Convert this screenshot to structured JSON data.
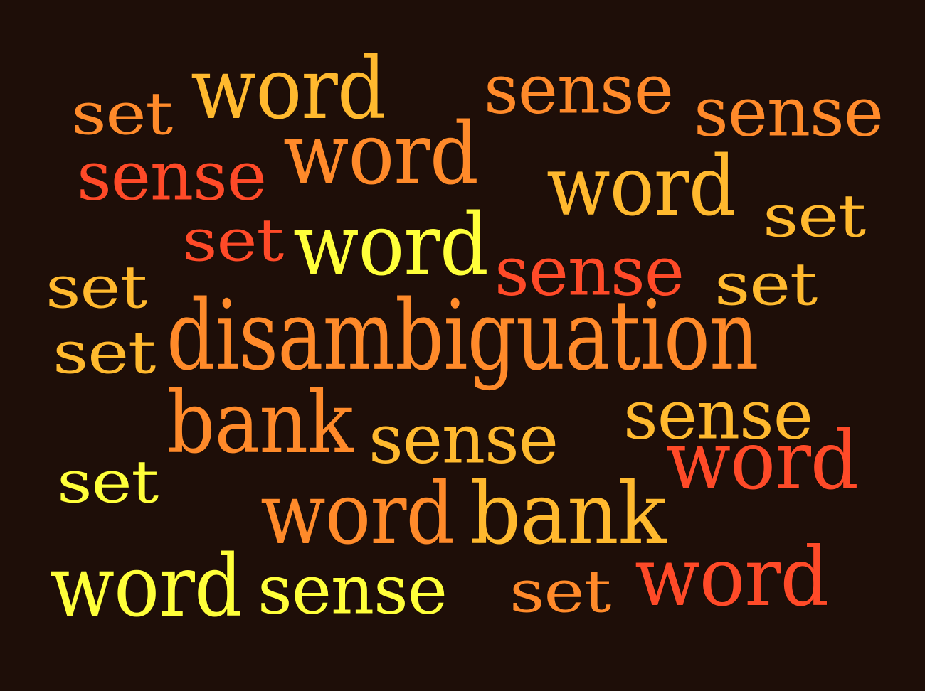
{
  "palette": {
    "background": "#1e0e08",
    "yellow": "#ffff3a",
    "gold": "#ffb92e",
    "orange": "#ff8a2a",
    "red": "#ff4a28"
  },
  "words": [
    {
      "text": "set",
      "color": "#ff8a2a"
    },
    {
      "text": "word",
      "color": "#ffb92e"
    },
    {
      "text": "sense",
      "color": "#ff8a2a"
    },
    {
      "text": "sense",
      "color": "#ff8a2a"
    },
    {
      "text": "sense",
      "color": "#ff4a28"
    },
    {
      "text": "word",
      "color": "#ff8a2a"
    },
    {
      "text": "word",
      "color": "#ffb92e"
    },
    {
      "text": "set",
      "color": "#ffb92e"
    },
    {
      "text": "set",
      "color": "#ff4a28"
    },
    {
      "text": "word",
      "color": "#ffff3a"
    },
    {
      "text": "sense",
      "color": "#ff4a28"
    },
    {
      "text": "set",
      "color": "#ffb92e"
    },
    {
      "text": "set",
      "color": "#ffb92e"
    },
    {
      "text": "set",
      "color": "#ffb92e"
    },
    {
      "text": "disambiguation",
      "color": "#ff8a2a"
    },
    {
      "text": "sense",
      "color": "#ffb92e"
    },
    {
      "text": "bank",
      "color": "#ff8a2a"
    },
    {
      "text": "sense",
      "color": "#ffb92e"
    },
    {
      "text": "set",
      "color": "#ffff3a"
    },
    {
      "text": "word",
      "color": "#ff4a28"
    },
    {
      "text": "word",
      "color": "#ff8a2a"
    },
    {
      "text": "bank",
      "color": "#ffb92e"
    },
    {
      "text": "word",
      "color": "#ffff3a"
    },
    {
      "text": "sense",
      "color": "#ffff3a"
    },
    {
      "text": "set",
      "color": "#ff8a2a"
    },
    {
      "text": "word",
      "color": "#ff4a28"
    }
  ]
}
